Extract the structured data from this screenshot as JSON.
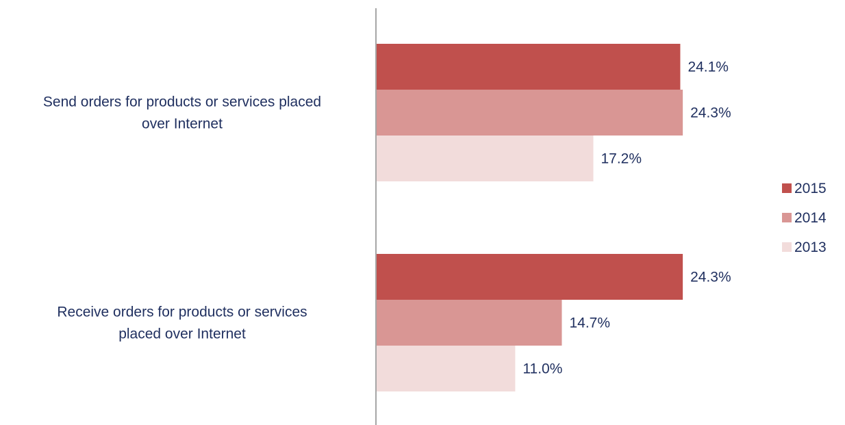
{
  "chart_data": {
    "type": "bar",
    "orientation": "horizontal",
    "title": "",
    "xlabel": "",
    "ylabel": "",
    "categories": [
      [
        "Send orders for products or services placed",
        "over Internet"
      ],
      [
        "Receive orders for products or services",
        "placed over Internet"
      ]
    ],
    "series": [
      {
        "name": "2015",
        "values": [
          24.1,
          24.3
        ],
        "labels": [
          "24.1%",
          "24.3%"
        ],
        "color": "#C0504D"
      },
      {
        "name": "2014",
        "values": [
          24.3,
          14.7
        ],
        "labels": [
          "24.3%",
          "14.7%"
        ],
        "color": "#D99694"
      },
      {
        "name": "2013",
        "values": [
          17.2,
          11.0
        ],
        "labels": [
          "17.2%",
          "11.0%"
        ],
        "color": "#F2DCDB"
      }
    ],
    "xlim": [
      0,
      30
    ],
    "grid": false,
    "legend": "right",
    "text_color": "#1F2F5F",
    "axis_color": "#888888"
  }
}
